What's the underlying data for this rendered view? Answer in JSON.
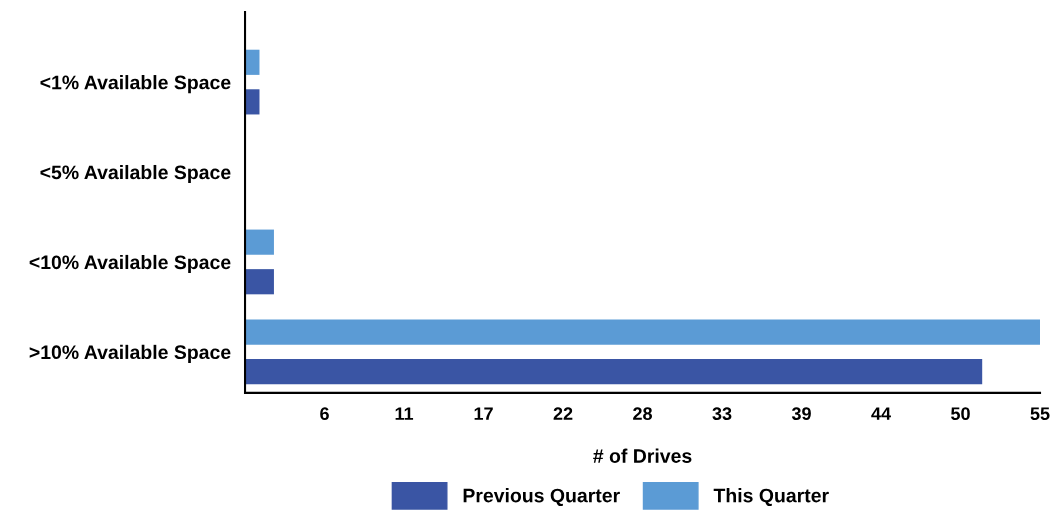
{
  "chart_data": {
    "type": "bar",
    "orientation": "horizontal",
    "xlabel": "# of Drives",
    "categories": [
      "<1% Available Space",
      "<5% Available Space",
      "<10% Available Space",
      ">10% Available Space"
    ],
    "series": [
      {
        "name": "Previous Quarter",
        "color": "#3a55a4",
        "values": [
          1,
          0,
          2,
          51
        ]
      },
      {
        "name": "This Quarter",
        "color": "#5b9bd5",
        "values": [
          1,
          0,
          2,
          55
        ]
      }
    ],
    "xlim": [
      0,
      55
    ],
    "xticks": [
      {
        "value": 5.5,
        "label": "6"
      },
      {
        "value": 11,
        "label": "11"
      },
      {
        "value": 16.5,
        "label": "17"
      },
      {
        "value": 22,
        "label": "22"
      },
      {
        "value": 27.5,
        "label": "28"
      },
      {
        "value": 33,
        "label": "33"
      },
      {
        "value": 38.5,
        "label": "39"
      },
      {
        "value": 44,
        "label": "44"
      },
      {
        "value": 49.5,
        "label": "50"
      },
      {
        "value": 55,
        "label": "55"
      }
    ],
    "grid": false,
    "legend": "bottom"
  }
}
